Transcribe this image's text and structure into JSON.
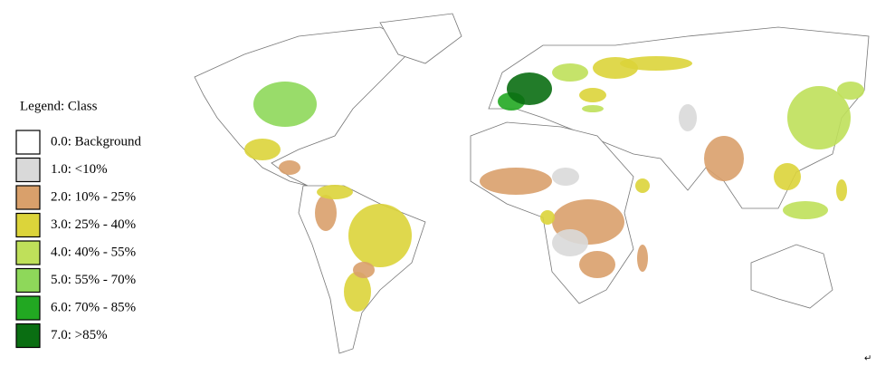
{
  "legend": {
    "title": "Legend: Class",
    "items": [
      {
        "label": "0.0: Background",
        "color": "#ffffff"
      },
      {
        "label": "1.0: <10%",
        "color": "#d9d9d9"
      },
      {
        "label": "2.0: 10% - 25%",
        "color": "#d9a06b"
      },
      {
        "label": "3.0: 25% - 40%",
        "color": "#dcd43a"
      },
      {
        "label": "4.0: 40% - 55%",
        "color": "#bfe05a"
      },
      {
        "label": "5.0: 55% - 70%",
        "color": "#8ed85a"
      },
      {
        "label": "6.0: 70% - 85%",
        "color": "#22a822"
      },
      {
        "label": "7.0: >85%",
        "color": "#0a6e12"
      }
    ]
  },
  "return_mark": "↵"
}
